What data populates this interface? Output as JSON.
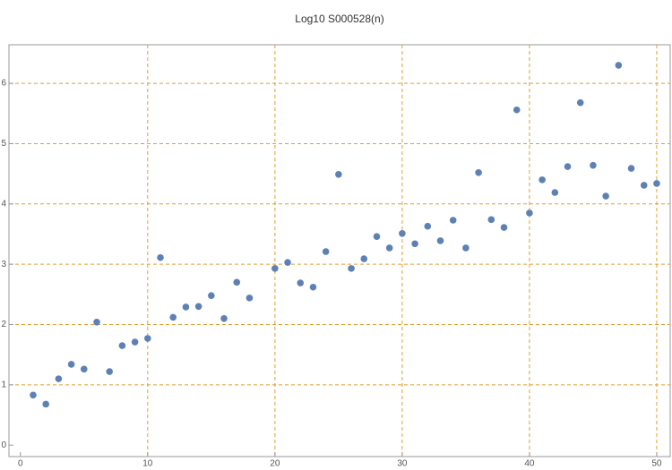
{
  "chart_data": {
    "type": "scatter",
    "title": "Log10 S000528(n)",
    "x": [
      1,
      2,
      3,
      4,
      5,
      6,
      7,
      8,
      9,
      10,
      11,
      12,
      13,
      14,
      15,
      16,
      17,
      18,
      20,
      21,
      22,
      23,
      24,
      25,
      26,
      27,
      28,
      29,
      30,
      31,
      32,
      33,
      34,
      35,
      36,
      37,
      38,
      39,
      40,
      41,
      42,
      43,
      44,
      45,
      46,
      47,
      48,
      49,
      50
    ],
    "series": [
      {
        "color": "#5e81b5",
        "values": [
          0.83,
          0.68,
          1.1,
          1.34,
          1.26,
          2.04,
          1.22,
          1.65,
          1.71,
          1.77,
          3.11,
          2.12,
          2.29,
          2.3,
          2.48,
          2.1,
          2.7,
          2.44,
          2.93,
          3.03,
          2.69,
          2.62,
          3.21,
          4.49,
          2.93,
          3.09,
          3.46,
          3.27,
          3.51,
          3.34,
          3.63,
          3.39,
          3.73,
          3.27,
          4.52,
          3.74,
          3.61,
          5.56,
          3.85,
          4.4,
          4.19,
          4.62,
          5.68,
          4.64,
          4.13,
          6.3,
          4.59,
          4.31,
          4.34
        ]
      }
    ],
    "xlim": [
      -0.9,
      51.06
    ],
    "ylim": [
      -0.19,
      6.64
    ],
    "xticks": [
      0,
      10,
      20,
      30,
      40,
      50
    ],
    "yticks": [
      0,
      1,
      2,
      3,
      4,
      5,
      6
    ],
    "xgrid": [
      10,
      20,
      30,
      40,
      50
    ],
    "ygrid": [
      1,
      2,
      3,
      4,
      5,
      6
    ],
    "grid_color": "#e0a030"
  }
}
